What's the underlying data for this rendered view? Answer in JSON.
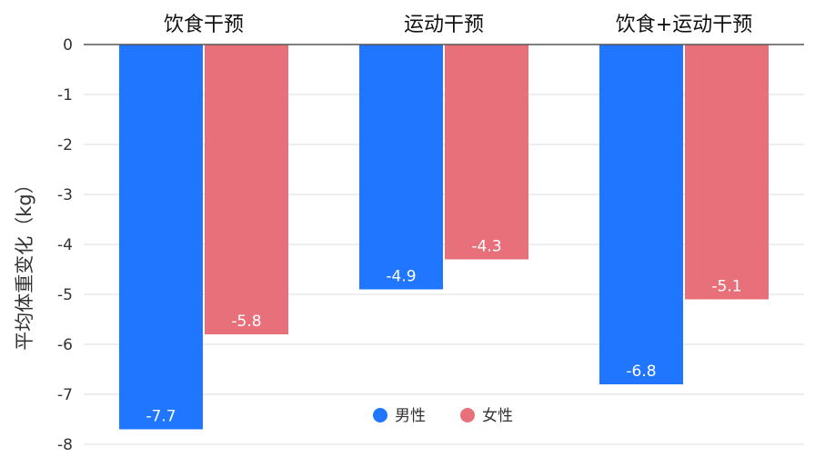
{
  "chart_data": {
    "type": "bar",
    "categories": [
      "饮食干预",
      "运动干预",
      "饮食+运动干预"
    ],
    "series": [
      {
        "name": "男性",
        "values": [
          -7.7,
          -4.9,
          -6.8
        ],
        "color": "#2176FF"
      },
      {
        "name": "女性",
        "values": [
          -5.8,
          -4.3,
          -5.1
        ],
        "color": "#E8707B"
      }
    ],
    "title": "",
    "xlabel": "",
    "ylabel": "平均体重变化（kg）",
    "ylim": [
      -8,
      0
    ],
    "yticks": [
      0,
      -1,
      -2,
      -3,
      -4,
      -5,
      -6,
      -7,
      -8
    ],
    "ytick_labels": [
      "0",
      "-1",
      "-2",
      "-3",
      "-4",
      "-5",
      "-6",
      "-7",
      "-8"
    ],
    "grid": true,
    "legend": "bottom-center",
    "category_axis_position": "top",
    "value_labels": [
      [
        "-7.7",
        "-4.9",
        "-6.8"
      ],
      [
        "-5.8",
        "-4.3",
        "-5.1"
      ]
    ]
  }
}
